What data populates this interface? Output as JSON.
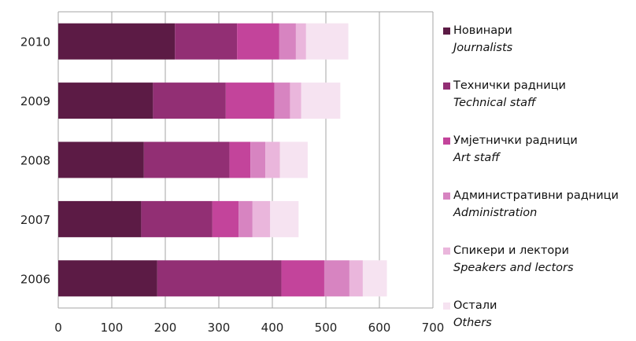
{
  "chart_data": {
    "type": "bar",
    "orientation": "horizontal",
    "stacked": true,
    "categories": [
      "2010",
      "2009",
      "2008",
      "2007",
      "2006"
    ],
    "xlim": [
      0,
      700
    ],
    "xticks": [
      0,
      100,
      200,
      300,
      400,
      500,
      600,
      700
    ],
    "grid": true,
    "legend_position": "right",
    "series": [
      {
        "name": "Новинари",
        "name_en": "Journalists",
        "color": "#5c1b45",
        "values": [
          218,
          177,
          160,
          155,
          185
        ]
      },
      {
        "name": "Технички радници",
        "name_en": "Technical staff",
        "color": "#922f74",
        "values": [
          116,
          136,
          160,
          133,
          232
        ]
      },
      {
        "name": "Умјетнички радници",
        "name_en": "Art staff",
        "color": "#c3449b",
        "values": [
          79,
          91,
          39,
          49,
          80
        ]
      },
      {
        "name": "Административни радници",
        "name_en": "Administration",
        "color": "#d784c1",
        "values": [
          31,
          29,
          28,
          26,
          47
        ]
      },
      {
        "name": "Спикери и лектори",
        "name_en": "Speakers and lectors",
        "color": "#eab6dc",
        "values": [
          19,
          21,
          27,
          33,
          25
        ]
      },
      {
        "name": "Остали",
        "name_en": "Others",
        "color": "#f6e3f1",
        "values": [
          79,
          73,
          52,
          53,
          45
        ]
      }
    ]
  }
}
